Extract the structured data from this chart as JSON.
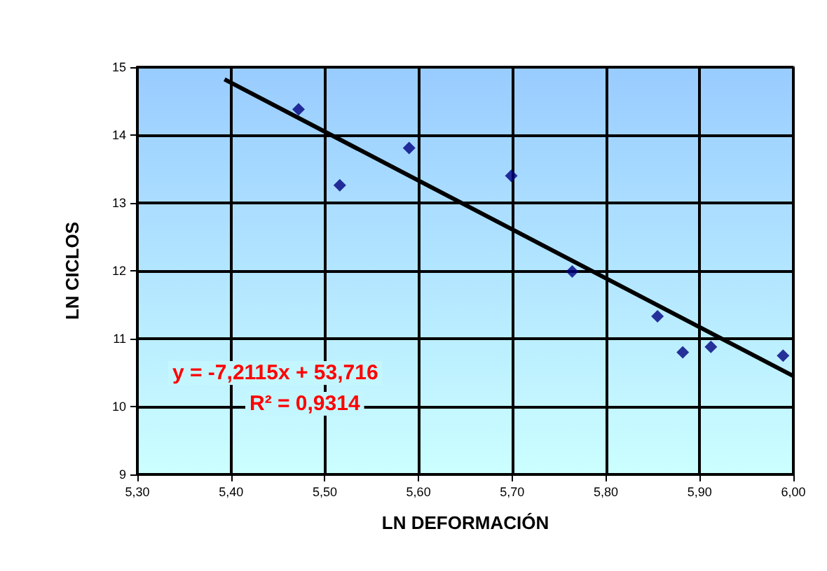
{
  "chart_data": {
    "type": "scatter",
    "xlabel": "LN DEFORMACIÓN",
    "ylabel": "LN CICLOS",
    "xlim": [
      5.3,
      6.0
    ],
    "xticks": [
      {
        "value": 5.3,
        "label": "5,30"
      },
      {
        "value": 5.4,
        "label": "5,40"
      },
      {
        "value": 5.5,
        "label": "5,50"
      },
      {
        "value": 5.6,
        "label": "5,60"
      },
      {
        "value": 5.7,
        "label": "5,70"
      },
      {
        "value": 5.8,
        "label": "5,80"
      },
      {
        "value": 5.9,
        "label": "5,90"
      },
      {
        "value": 6.0,
        "label": "6,00"
      }
    ],
    "ylim": [
      9,
      15
    ],
    "yticks": [
      9,
      10,
      11,
      12,
      13,
      14,
      15
    ],
    "grid": true,
    "marker": "diamond",
    "series": [
      {
        "color": "#000080",
        "x": [
          5.472,
          5.516,
          5.59,
          5.699,
          5.764,
          5.855,
          5.882,
          5.912,
          5.989
        ],
        "values": [
          14.38,
          13.26,
          13.81,
          13.4,
          11.99,
          11.33,
          10.8,
          10.88,
          10.75
        ]
      },
      {
        "type": "line",
        "marker": "none",
        "color": "#000000",
        "x": [
          5.393,
          6.0
        ],
        "values": [
          14.82,
          10.45
        ]
      }
    ],
    "annotations": [
      "y = -7,2115x + 53,716",
      "R² = 0,9314"
    ]
  }
}
